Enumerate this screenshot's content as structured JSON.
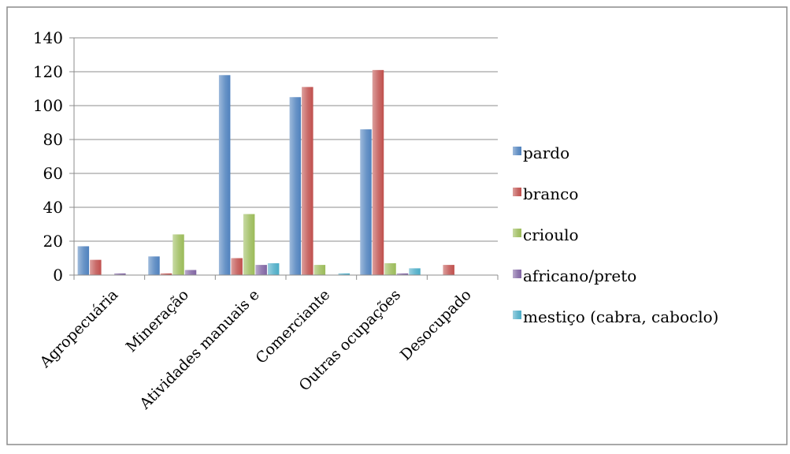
{
  "chart_data": {
    "type": "bar",
    "title": "",
    "xlabel": "",
    "ylabel": "",
    "ylim": [
      0,
      140
    ],
    "yticks": [
      0,
      20,
      40,
      60,
      80,
      100,
      120,
      140
    ],
    "grid": true,
    "legend_position": "right",
    "categories": [
      "Agropecuária",
      "Mineração",
      "Atividades manuais e",
      "Comerciante",
      "Outras ocupações",
      "Desocupado"
    ],
    "series": [
      {
        "name": "pardo",
        "color": "#4f81bd",
        "values": [
          17,
          11,
          118,
          105,
          86,
          0
        ]
      },
      {
        "name": "branco",
        "color": "#c0504d",
        "values": [
          9,
          1,
          10,
          111,
          121,
          6
        ]
      },
      {
        "name": "crioulo",
        "color": "#9bbb59",
        "values": [
          0,
          24,
          36,
          6,
          7,
          0
        ]
      },
      {
        "name": "africano/preto",
        "color": "#8064a2",
        "values": [
          1,
          3,
          6,
          0,
          1,
          0
        ]
      },
      {
        "name": "mestiço (cabra, caboclo)",
        "color": "#4bacc6",
        "values": [
          0,
          0,
          7,
          1,
          4,
          0
        ]
      }
    ]
  }
}
